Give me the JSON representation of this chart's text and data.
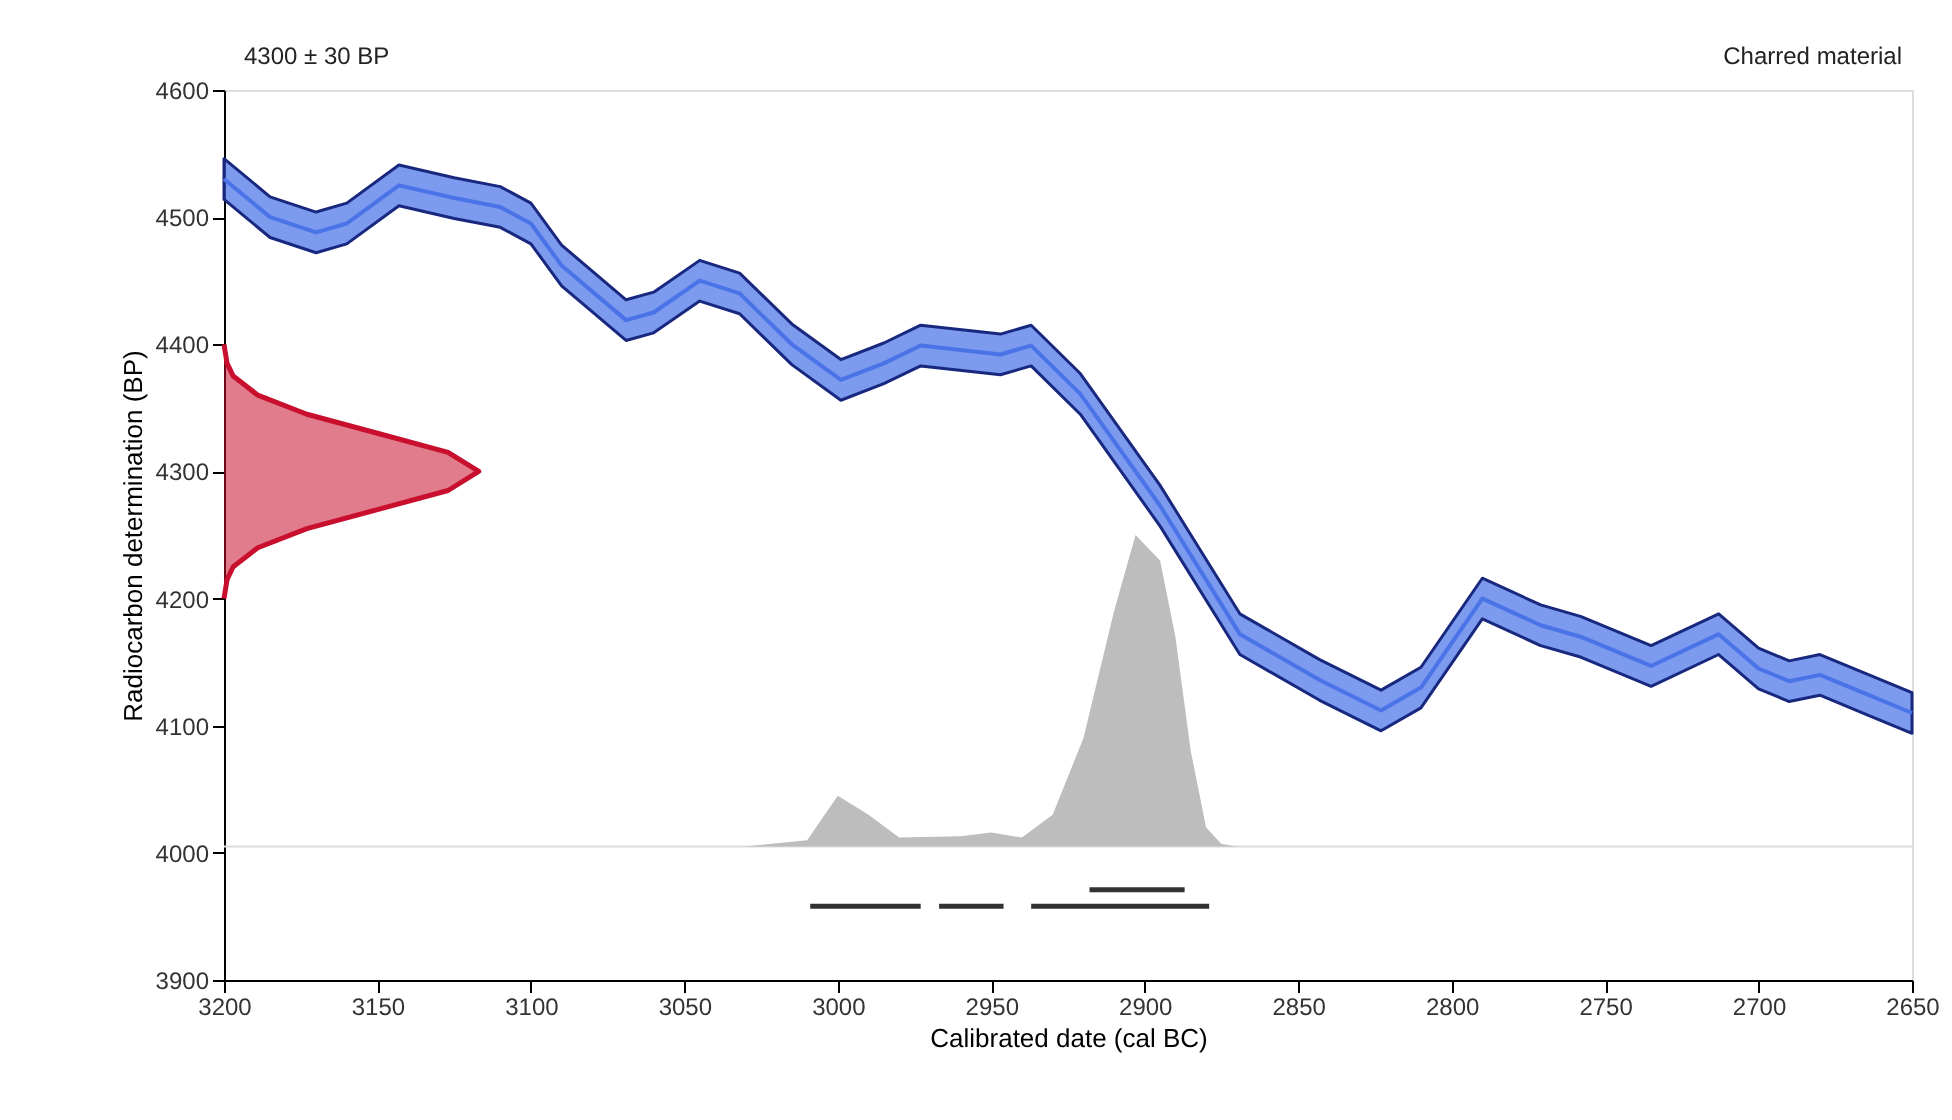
{
  "chart_data": {
    "type": "area",
    "xlabel": "Calibrated date (cal BC)",
    "ylabel": "Radiocarbon determination (BP)",
    "annotations": [
      "4300 ± 30 BP",
      "Charred material"
    ],
    "xlim": [
      3200,
      2650
    ],
    "xticks": [
      3200,
      3150,
      3100,
      3050,
      3000,
      2950,
      2900,
      2850,
      2800,
      2750,
      2700,
      2650
    ],
    "ylim": [
      3900,
      4600
    ],
    "yticks": [
      3900,
      4000,
      4100,
      4200,
      4300,
      4400,
      4500,
      4600
    ],
    "grid": false,
    "ref_lines": [
      {
        "axis": "y",
        "value": 4005,
        "color": "#dddddd"
      }
    ],
    "series": [
      {
        "color": "#bdbdbd",
        "x": [
          3030,
          3010,
          3000,
          2990,
          2980,
          2960,
          2950,
          2940,
          2930,
          2920,
          2910,
          2903,
          2895,
          2890,
          2885,
          2880,
          2875,
          2870
        ],
        "values": [
          4005,
          4010,
          4045,
          4030,
          4012,
          4013,
          4016,
          4012,
          4030,
          4090,
          4190,
          4250,
          4230,
          4170,
          4080,
          4020,
          4007,
          4005
        ]
      },
      {
        "type": "line",
        "color": "#4a73e8",
        "x": [
          3200,
          3185,
          3170,
          3160,
          3143,
          3125,
          3110,
          3100,
          3090,
          3069,
          3060,
          3045,
          3032,
          3015,
          2999,
          2985,
          2973,
          2947,
          2937,
          2921,
          2895,
          2869,
          2843,
          2823,
          2810,
          2790,
          2771,
          2758,
          2735,
          2713,
          2700,
          2690,
          2680,
          2665,
          2650
        ],
        "lower": [
          4514,
          4484,
          4472,
          4479,
          4509,
          4499,
          4492,
          4479,
          4446,
          4403,
          4409,
          4434,
          4424,
          4384,
          4356,
          4369,
          4383,
          4376,
          4383,
          4345,
          4257,
          4156,
          4120,
          4096,
          4114,
          4184,
          4163,
          4154,
          4131,
          4156,
          4129,
          4119,
          4124,
          4109,
          4094
        ],
        "values": [
          4530,
          4500,
          4488,
          4495,
          4525,
          4515,
          4508,
          4495,
          4462,
          4419,
          4425,
          4450,
          4440,
          4400,
          4372,
          4385,
          4399,
          4392,
          4399,
          4361,
          4273,
          4172,
          4136,
          4112,
          4130,
          4200,
          4179,
          4170,
          4147,
          4172,
          4145,
          4135,
          4140,
          4125,
          4110
        ],
        "upper": [
          4546,
          4516,
          4504,
          4511,
          4541,
          4531,
          4524,
          4511,
          4478,
          4435,
          4441,
          4466,
          4456,
          4416,
          4388,
          4401,
          4415,
          4408,
          4415,
          4377,
          4289,
          4188,
          4152,
          4128,
          4146,
          4216,
          4195,
          4186,
          4163,
          4188,
          4161,
          4151,
          4156,
          4141,
          4126
        ]
      },
      {
        "type": "line",
        "color": "#c8102e",
        "x": [
          3200,
          3199,
          3197,
          3189,
          3173,
          3150,
          3127,
          3117,
          3127,
          3150,
          3173,
          3189,
          3197,
          3199,
          3200
        ],
        "values": [
          4200,
          4215,
          4225,
          4240,
          4255,
          4270,
          4285,
          4300,
          4315,
          4330,
          4345,
          4360,
          4375,
          4385,
          4400
        ]
      },
      {
        "type": "line",
        "color": "#333333",
        "x": [
          3009,
          2973
        ],
        "values": [
          3958,
          3958
        ]
      },
      {
        "type": "line",
        "color": "#333333",
        "x": [
          2967,
          2946
        ],
        "values": [
          3958,
          3958
        ]
      },
      {
        "type": "line",
        "color": "#333333",
        "x": [
          2937,
          2879
        ],
        "values": [
          3958,
          3958
        ]
      },
      {
        "type": "line",
        "color": "#333333",
        "x": [
          2918,
          2887
        ],
        "values": [
          3971,
          3971
        ]
      }
    ]
  }
}
